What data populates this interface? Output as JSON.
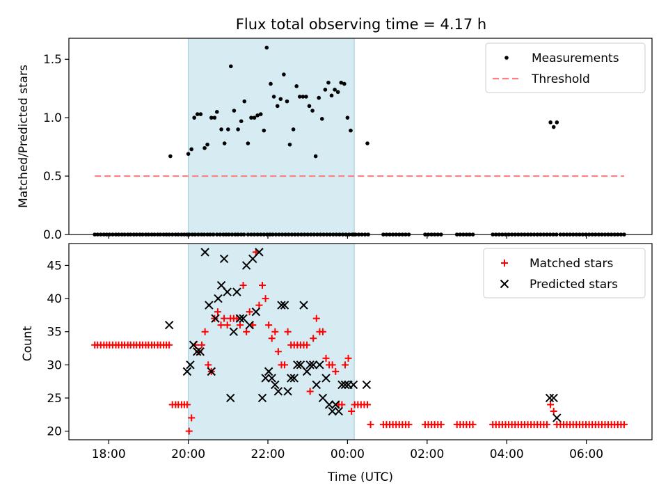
{
  "title": "Flux total observing time = 4.17 h",
  "chart_data": [
    {
      "type": "scatter",
      "panel": "top",
      "ylabel": "Matched/Predicted stars",
      "ylim": [
        0,
        1.68
      ],
      "yticks": [
        0.0,
        0.5,
        1.0,
        1.5
      ],
      "ytick_labels": [
        "0.0",
        "0.5",
        "1.0",
        "1.5"
      ],
      "x_unit": "hours since 00:00 UTC on the first night (values >24 are the following morning)",
      "xlim": [
        17.0,
        31.65
      ],
      "shaded_span": [
        20.0,
        24.17
      ],
      "legend": {
        "placement": "top-right",
        "entries": [
          "Measurements",
          "Threshold"
        ]
      },
      "series": [
        {
          "name": "Measurements",
          "style": "dot",
          "color": "#000000",
          "x": [
            17.65,
            17.72,
            17.8,
            17.88,
            17.95,
            18.02,
            18.1,
            18.18,
            18.25,
            18.33,
            18.4,
            18.48,
            18.55,
            18.63,
            18.7,
            18.78,
            18.85,
            18.93,
            19.0,
            19.08,
            19.15,
            19.23,
            19.3,
            19.38,
            19.45,
            19.52,
            19.6,
            19.68,
            19.75,
            19.83,
            19.9,
            19.97,
            20.02,
            20.1,
            20.17,
            20.25,
            20.33,
            20.4,
            20.48,
            20.55,
            20.63,
            20.72,
            20.8,
            20.88,
            20.95,
            21.02,
            21.1,
            21.18,
            21.25,
            21.33,
            21.4,
            21.5,
            21.58,
            21.66,
            21.74,
            21.82,
            21.9,
            21.98,
            22.05,
            22.12,
            22.2,
            22.28,
            22.36,
            22.44,
            22.52,
            22.6,
            22.68,
            22.76,
            22.84,
            22.92,
            23.0,
            23.08,
            23.16,
            23.24,
            23.32,
            23.4,
            23.48,
            23.56,
            23.64,
            23.72,
            23.8,
            23.88,
            23.96,
            24.04,
            24.12,
            24.2,
            24.28,
            24.36,
            24.44,
            24.52,
            24.9,
            24.98,
            25.06,
            25.14,
            25.22,
            25.3,
            25.38,
            25.46,
            25.54,
            25.95,
            26.03,
            26.11,
            26.19,
            26.27,
            26.35,
            26.75,
            26.83,
            26.91,
            26.99,
            27.07,
            27.15,
            27.65,
            27.73,
            27.81,
            27.89,
            27.97,
            28.05,
            28.13,
            28.21,
            28.29,
            28.37,
            28.45,
            28.53,
            28.61,
            28.69,
            28.77,
            28.85,
            28.93,
            29.01,
            29.09,
            29.17,
            29.25,
            29.35,
            29.43,
            29.51,
            29.59,
            29.67,
            29.75,
            29.83,
            29.91,
            29.99,
            30.07,
            30.15,
            30.23,
            30.31,
            30.39,
            30.47,
            30.55,
            30.63,
            30.71,
            30.79,
            30.87,
            30.95,
            19.55,
            20.0,
            20.08,
            20.15,
            20.23,
            20.31,
            20.41,
            20.48,
            20.58,
            20.66,
            20.72,
            20.83,
            20.91,
            21.0,
            21.07,
            21.15,
            21.25,
            21.33,
            21.41,
            21.5,
            21.58,
            21.66,
            21.74,
            21.82,
            21.9,
            21.97,
            22.07,
            22.15,
            22.24,
            22.32,
            22.4,
            22.48,
            22.55,
            22.64,
            22.72,
            22.8,
            22.88,
            22.96,
            23.04,
            23.12,
            23.2,
            23.28,
            23.36,
            23.44,
            23.52,
            23.6,
            23.68,
            23.76,
            23.84,
            23.92,
            24.0,
            24.08,
            24.16,
            24.5,
            29.1,
            29.18,
            29.26
          ],
          "y": [
            0,
            0,
            0,
            0,
            0,
            0,
            0,
            0,
            0,
            0,
            0,
            0,
            0,
            0,
            0,
            0,
            0,
            0,
            0,
            0,
            0,
            0,
            0,
            0,
            0,
            0,
            0,
            0,
            0,
            0,
            0,
            0,
            0,
            0,
            0,
            0,
            0,
            0,
            0,
            0,
            0,
            0,
            0,
            0,
            0,
            0,
            0,
            0,
            0,
            0,
            0,
            0,
            0,
            0,
            0,
            0,
            0,
            0,
            0,
            0,
            0,
            0,
            0,
            0,
            0,
            0,
            0,
            0,
            0,
            0,
            0,
            0,
            0,
            0,
            0,
            0,
            0,
            0,
            0,
            0,
            0,
            0,
            0,
            0,
            0,
            0,
            0,
            0,
            0,
            0,
            0,
            0,
            0,
            0,
            0,
            0,
            0,
            0,
            0,
            0,
            0,
            0,
            0,
            0,
            0,
            0,
            0,
            0,
            0,
            0,
            0,
            0,
            0,
            0,
            0,
            0,
            0,
            0,
            0,
            0,
            0,
            0,
            0,
            0,
            0,
            0,
            0,
            0,
            0,
            0,
            0,
            0,
            0,
            0,
            0,
            0,
            0,
            0,
            0,
            0,
            0,
            0,
            0,
            0,
            0,
            0,
            0,
            0,
            0,
            0,
            0,
            0,
            0,
            0.67,
            0.69,
            0.73,
            1.0,
            1.03,
            1.03,
            0.74,
            0.77,
            1.0,
            1.0,
            1.05,
            0.9,
            0.78,
            0.9,
            1.44,
            1.06,
            0.9,
            0.97,
            1.14,
            0.78,
            1.0,
            1.0,
            1.02,
            1.03,
            0.89,
            1.6,
            1.29,
            1.18,
            1.1,
            1.16,
            1.37,
            1.14,
            0.77,
            0.9,
            1.27,
            1.18,
            1.18,
            1.18,
            1.1,
            1.06,
            0.67,
            1.17,
            0.99,
            1.24,
            1.3,
            1.19,
            1.24,
            1.22,
            1.3,
            1.29,
            1.0,
            0.89,
            0.0,
            0.78,
            0.96,
            0.92,
            0.96
          ]
        },
        {
          "name": "Threshold",
          "style": "dashed-line",
          "color": "#ff7f7f",
          "x": [
            17.65,
            30.95
          ],
          "y": [
            0.5,
            0.5
          ]
        }
      ]
    },
    {
      "type": "scatter",
      "panel": "bottom",
      "xlabel": "Time (UTC)",
      "ylabel": "Count",
      "ylim": [
        18.7,
        48.3
      ],
      "yticks": [
        20,
        25,
        30,
        35,
        40,
        45
      ],
      "ytick_labels": [
        "20",
        "25",
        "30",
        "35",
        "40",
        "45"
      ],
      "xlim": [
        17.0,
        31.65
      ],
      "xticks": [
        18,
        20,
        22,
        24,
        26,
        28,
        30
      ],
      "xtick_labels": [
        "18:00",
        "20:00",
        "22:00",
        "00:00",
        "02:00",
        "04:00",
        "06:00"
      ],
      "shaded_span": [
        20.0,
        24.17
      ],
      "legend": {
        "placement": "top-right",
        "entries": [
          "Matched stars",
          "Predicted stars"
        ]
      },
      "series": [
        {
          "name": "Matched stars",
          "style": "plus",
          "color": "#ff0000",
          "x": [
            17.65,
            17.72,
            17.8,
            17.88,
            17.95,
            18.02,
            18.1,
            18.18,
            18.25,
            18.33,
            18.4,
            18.48,
            18.55,
            18.63,
            18.7,
            18.78,
            18.85,
            18.93,
            19.0,
            19.08,
            19.15,
            19.23,
            19.3,
            19.38,
            19.45,
            19.52,
            19.6,
            19.68,
            19.75,
            19.83,
            19.9,
            19.97,
            20.02,
            20.08,
            20.18,
            20.26,
            20.34,
            20.42,
            20.5,
            20.58,
            20.66,
            20.74,
            20.82,
            20.9,
            20.98,
            21.06,
            21.14,
            21.22,
            21.3,
            21.38,
            21.46,
            21.54,
            21.62,
            21.7,
            21.78,
            21.86,
            21.94,
            22.02,
            22.1,
            22.18,
            22.26,
            22.34,
            22.42,
            22.5,
            22.58,
            22.66,
            22.74,
            22.82,
            22.9,
            22.98,
            23.06,
            23.14,
            23.22,
            23.3,
            23.38,
            23.46,
            23.54,
            23.62,
            23.7,
            23.78,
            23.86,
            23.94,
            24.02,
            24.1,
            24.18,
            24.26,
            24.34,
            24.42,
            24.5,
            24.58,
            24.9,
            24.98,
            25.06,
            25.14,
            25.22,
            25.3,
            25.38,
            25.46,
            25.54,
            25.95,
            26.03,
            26.11,
            26.19,
            26.27,
            26.35,
            26.75,
            26.83,
            26.91,
            26.99,
            27.07,
            27.15,
            27.65,
            27.73,
            27.81,
            27.89,
            27.97,
            28.05,
            28.13,
            28.21,
            28.29,
            28.37,
            28.45,
            28.53,
            28.61,
            28.69,
            28.77,
            28.85,
            28.93,
            29.01,
            29.1,
            29.18,
            29.26,
            29.35,
            29.43,
            29.51,
            29.59,
            29.67,
            29.75,
            29.83,
            29.91,
            29.99,
            30.07,
            30.15,
            30.23,
            30.31,
            30.39,
            30.47,
            30.55,
            30.63,
            30.71,
            30.79,
            30.87,
            30.95
          ],
          "y": [
            33,
            33,
            33,
            33,
            33,
            33,
            33,
            33,
            33,
            33,
            33,
            33,
            33,
            33,
            33,
            33,
            33,
            33,
            33,
            33,
            33,
            33,
            33,
            33,
            33,
            33,
            24,
            24,
            24,
            24,
            24,
            24,
            20,
            22,
            33,
            32,
            33,
            35,
            30,
            29,
            37,
            38,
            36,
            37,
            36,
            37,
            37,
            37,
            36,
            42,
            35,
            38,
            36,
            47,
            39,
            42,
            40,
            36,
            34,
            35,
            32,
            30,
            30,
            35,
            33,
            33,
            33,
            33,
            33,
            33,
            26,
            34,
            37,
            35,
            35,
            31,
            30,
            30,
            29,
            24,
            24,
            30,
            31,
            23,
            24,
            24,
            24,
            24,
            24,
            21,
            21,
            21,
            21,
            21,
            21,
            21,
            21,
            21,
            21,
            21,
            21,
            21,
            21,
            21,
            21,
            21,
            21,
            21,
            21,
            21,
            21,
            21,
            21,
            21,
            21,
            21,
            21,
            21,
            21,
            21,
            21,
            21,
            21,
            21,
            21,
            21,
            21,
            21,
            21,
            24,
            23,
            21,
            21,
            21,
            21,
            21,
            21,
            21,
            21,
            21,
            21,
            21,
            21,
            21,
            21,
            21,
            21,
            21,
            21,
            21,
            21,
            21,
            21
          ]
        },
        {
          "name": "Predicted stars",
          "style": "x",
          "color": "#000000",
          "x": [
            19.52,
            19.97,
            20.05,
            20.13,
            20.22,
            20.3,
            20.42,
            20.52,
            20.58,
            20.68,
            20.75,
            20.83,
            20.9,
            20.98,
            21.06,
            21.14,
            21.22,
            21.3,
            21.38,
            21.46,
            21.54,
            21.62,
            21.7,
            21.78,
            21.86,
            21.94,
            22.02,
            22.1,
            22.18,
            22.26,
            22.34,
            22.42,
            22.5,
            22.58,
            22.66,
            22.74,
            22.82,
            22.9,
            22.98,
            23.06,
            23.14,
            23.22,
            23.3,
            23.38,
            23.46,
            23.54,
            23.62,
            23.7,
            23.78,
            23.86,
            23.94,
            24.02,
            24.15,
            24.48,
            29.08,
            29.18,
            29.26
          ],
          "y": [
            36,
            29,
            30,
            33,
            32,
            32,
            47,
            39,
            29,
            37,
            40,
            42,
            46,
            41,
            25,
            35,
            41,
            37,
            37,
            45,
            36,
            46,
            38,
            47,
            25,
            28,
            29,
            28,
            27,
            26,
            39,
            39,
            26,
            28,
            28,
            30,
            30,
            39,
            29,
            30,
            30,
            27,
            30,
            25,
            28,
            24,
            23,
            24,
            23,
            27,
            27,
            27,
            27,
            27,
            25,
            25,
            22
          ]
        }
      ]
    }
  ]
}
